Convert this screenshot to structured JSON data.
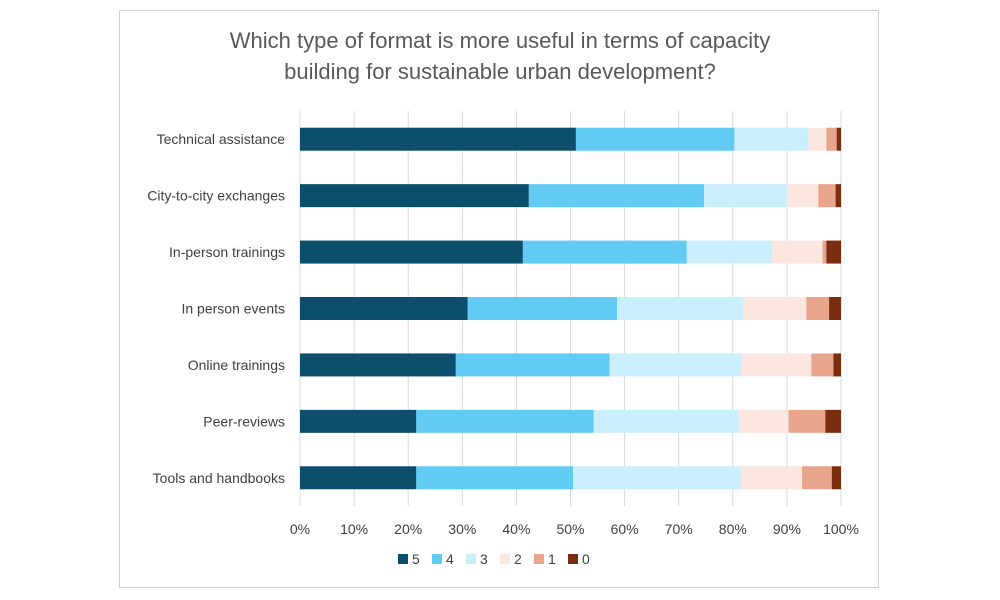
{
  "chart_data": {
    "type": "bar",
    "orientation": "horizontal",
    "stacked": "percent",
    "title": "Which type of format is more useful in terms of capacity building  for sustainable urban development?",
    "title_lines": [
      "Which type of format is more useful in terms of capacity",
      "building  for sustainable urban development?"
    ],
    "categories": [
      "Technical assistance",
      "City-to-city exchanges",
      "In-person trainings",
      "In person events",
      "Online trainings",
      "Peer-reviews",
      "Tools and handbooks"
    ],
    "series": [
      {
        "name": "5",
        "color": "#0b4f6c",
        "values": [
          51,
          42.3,
          41.2,
          31,
          28.8,
          21.5,
          21.5
        ]
      },
      {
        "name": "4",
        "color": "#61cbf3",
        "values": [
          29.3,
          32.4,
          30.3,
          27.6,
          28.4,
          32.8,
          29
        ]
      },
      {
        "name": "3",
        "color": "#caeefb",
        "values": [
          13.7,
          15.3,
          15.8,
          23.4,
          24.4,
          26.8,
          31
        ]
      },
      {
        "name": "2",
        "color": "#fbe6e0",
        "values": [
          3.3,
          5.8,
          9.3,
          11.6,
          12.9,
          9.2,
          11.3
        ]
      },
      {
        "name": "1",
        "color": "#e8a58c",
        "values": [
          1.9,
          3.2,
          0.7,
          4.2,
          4.1,
          6.8,
          5.5
        ]
      },
      {
        "name": "0",
        "color": "#7b2d0f",
        "values": [
          0.8,
          1,
          2.7,
          2.2,
          1.4,
          2.9,
          1.7
        ]
      }
    ],
    "xlim": [
      0,
      100
    ],
    "x_ticks": [
      "0%",
      "10%",
      "20%",
      "30%",
      "40%",
      "50%",
      "60%",
      "70%",
      "80%",
      "90%",
      "100%"
    ],
    "grid": true,
    "legend_position": "bottom"
  }
}
